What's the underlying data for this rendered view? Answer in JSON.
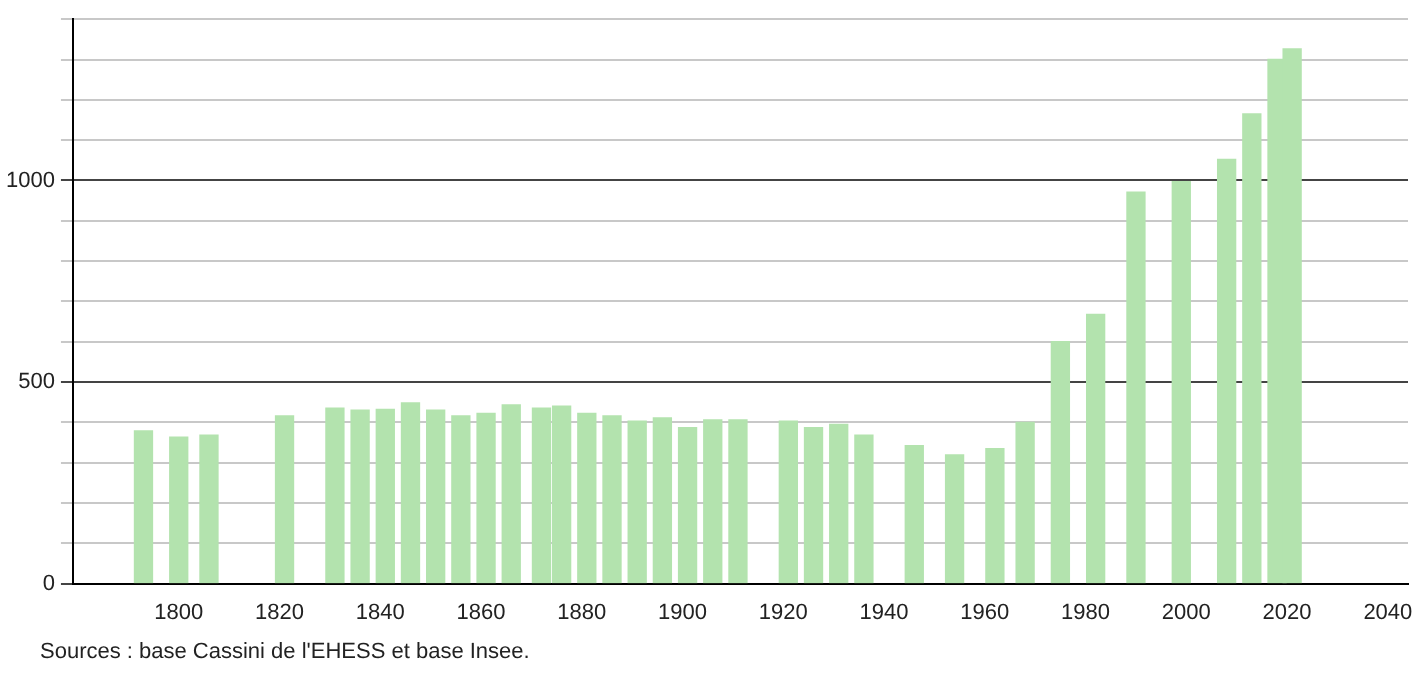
{
  "chart_data": {
    "type": "bar",
    "x": [
      1793,
      1800,
      1806,
      1821,
      1831,
      1836,
      1841,
      1846,
      1851,
      1856,
      1861,
      1866,
      1872,
      1876,
      1881,
      1886,
      1891,
      1896,
      1901,
      1906,
      1911,
      1921,
      1926,
      1931,
      1936,
      1946,
      1954,
      1962,
      1968,
      1975,
      1982,
      1990,
      1999,
      2008,
      2013,
      2018,
      2021
    ],
    "values": [
      379,
      363,
      368,
      416,
      435,
      430,
      432,
      448,
      430,
      416,
      422,
      443,
      435,
      440,
      422,
      416,
      403,
      411,
      387,
      406,
      406,
      403,
      387,
      395,
      368,
      342,
      319,
      335,
      400,
      600,
      668,
      971,
      997,
      1052,
      1165,
      1300,
      1326
    ],
    "color": "#b3e3ae",
    "xlim": [
      1779,
      2044
    ],
    "xticks": [
      1800,
      1820,
      1840,
      1860,
      1880,
      1900,
      1920,
      1940,
      1960,
      1980,
      2000,
      2020,
      2040
    ],
    "ylim": [
      0,
      1400
    ],
    "yticks": [
      0,
      {
        "value": 100,
        "label": null
      },
      {
        "value": 200,
        "label": null
      },
      {
        "value": 300,
        "label": null
      },
      {
        "value": 400,
        "label": null
      },
      500,
      {
        "value": 600,
        "label": null
      },
      {
        "value": 700,
        "label": null
      },
      {
        "value": 800,
        "label": null
      },
      {
        "value": 900,
        "label": null
      },
      1000,
      {
        "value": 1100,
        "label": null
      },
      {
        "value": 1200,
        "label": null
      },
      {
        "value": 1300,
        "label": null
      },
      {
        "value": 1400,
        "label": null
      }
    ],
    "grid": "y",
    "legend": false,
    "annotations": [
      "Sources : base Cassini de l'EHESS et base Insee."
    ]
  }
}
